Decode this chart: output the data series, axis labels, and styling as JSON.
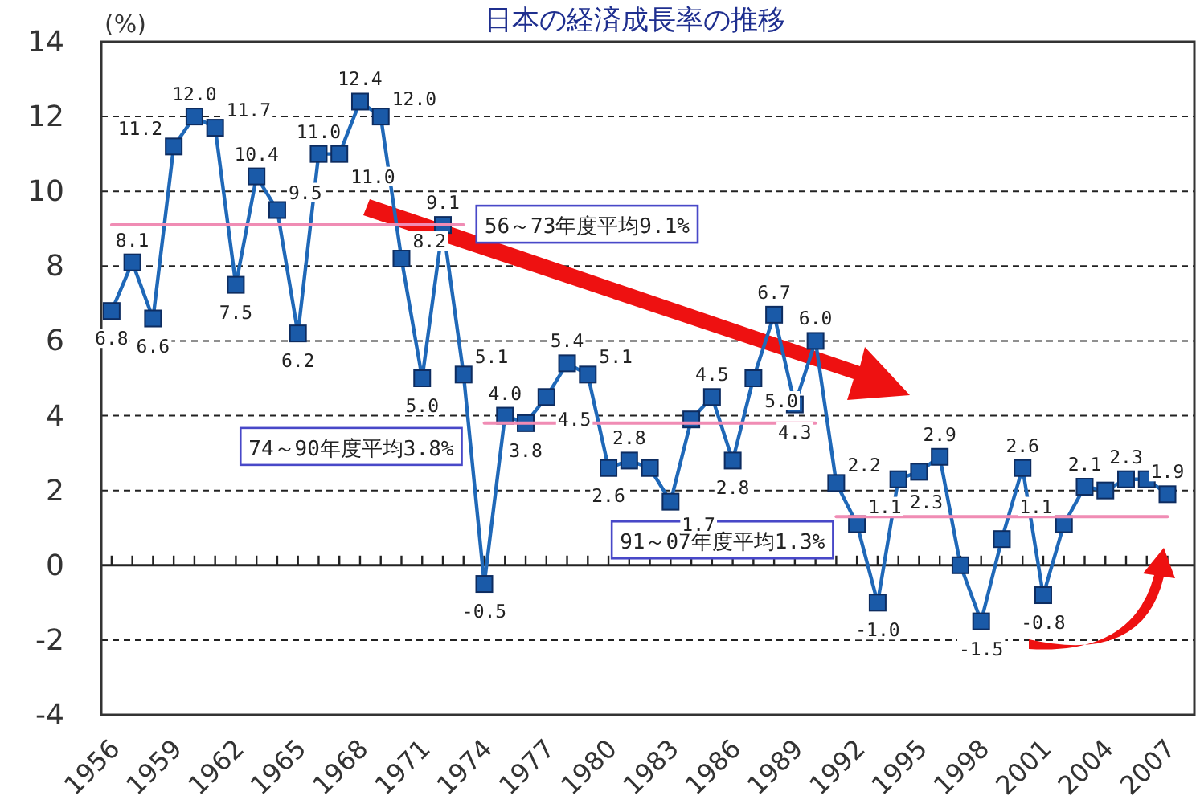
{
  "chart_data": {
    "type": "line",
    "title": "日本の経済成長率の推移",
    "ylabel": "(%)",
    "x": [
      1956,
      1957,
      1958,
      1959,
      1960,
      1961,
      1962,
      1963,
      1964,
      1965,
      1966,
      1967,
      1968,
      1969,
      1970,
      1971,
      1972,
      1973,
      1974,
      1975,
      1976,
      1977,
      1978,
      1979,
      1980,
      1981,
      1982,
      1983,
      1984,
      1985,
      1986,
      1987,
      1988,
      1989,
      1990,
      1991,
      1992,
      1993,
      1994,
      1995,
      1996,
      1997,
      1998,
      1999,
      2000,
      2001,
      2002,
      2003,
      2004,
      2005,
      2006,
      2007
    ],
    "series": [
      {
        "color": "#1f68b8",
        "marker": "square",
        "values": [
          6.8,
          8.1,
          6.6,
          11.2,
          12.0,
          11.7,
          7.5,
          10.4,
          9.5,
          6.2,
          11.0,
          11.0,
          12.4,
          12.0,
          8.2,
          5.0,
          9.1,
          5.1,
          -0.5,
          4.0,
          3.8,
          4.5,
          5.4,
          5.1,
          2.6,
          2.8,
          2.6,
          1.7,
          3.9,
          4.5,
          2.8,
          5.0,
          6.7,
          4.3,
          6.0,
          2.2,
          1.1,
          -1.0,
          2.3,
          2.5,
          2.9,
          0.0,
          -1.5,
          0.7,
          2.6,
          -0.8,
          1.1,
          2.1,
          2.0,
          2.3,
          2.3,
          1.9
        ],
        "value_labels": [
          "6.8",
          "8.1",
          "6.6",
          "11.2",
          "12.0",
          "11.7",
          "7.5",
          "10.4",
          "9.5",
          "6.2",
          "11.0",
          "11.0",
          "12.4",
          "12.0",
          "8.2",
          "5.0",
          "9.1",
          "5.1",
          "-0.5",
          "4.0",
          "3.8",
          "4.5",
          "5.4",
          "5.1",
          "2.6",
          "2.8",
          null,
          "1.7",
          null,
          "4.5",
          "2.8",
          "5.0",
          "6.7",
          "4.3",
          "6.0",
          "2.2",
          "1.1",
          "-1.0",
          "2.3",
          null,
          "2.9",
          null,
          "-1.5",
          null,
          "2.6",
          "-0.8",
          "1.1",
          "2.1",
          null,
          "2.3",
          null,
          "1.9"
        ]
      },
      {
        "name": "56～73年度平均9.1%",
        "color": "#f08cb4",
        "marker": "none",
        "x": [
          1956,
          1973
        ],
        "values": [
          9.1,
          9.1
        ]
      },
      {
        "name": "74～90年度平均3.8%",
        "color": "#f08cb4",
        "marker": "none",
        "x": [
          1974,
          1990
        ],
        "values": [
          3.8,
          3.8
        ]
      },
      {
        "name": "91～07年度平均1.3%",
        "color": "#f08cb4",
        "marker": "none",
        "x": [
          1991,
          2007
        ],
        "values": [
          1.3,
          1.3
        ]
      }
    ],
    "xlim": [
      1955.5,
      2008.3
    ],
    "xticks": [
      1956,
      {
        "value": 1957,
        "label": null
      },
      {
        "value": 1958,
        "label": null
      },
      1959,
      {
        "value": 1960,
        "label": null
      },
      {
        "value": 1961,
        "label": null
      },
      1962,
      {
        "value": 1963,
        "label": null
      },
      {
        "value": 1964,
        "label": null
      },
      1965,
      {
        "value": 1966,
        "label": null
      },
      {
        "value": 1967,
        "label": null
      },
      1968,
      {
        "value": 1969,
        "label": null
      },
      {
        "value": 1970,
        "label": null
      },
      1971,
      {
        "value": 1972,
        "label": null
      },
      {
        "value": 1973,
        "label": null
      },
      1974,
      {
        "value": 1975,
        "label": null
      },
      {
        "value": 1976,
        "label": null
      },
      1977,
      {
        "value": 1978,
        "label": null
      },
      {
        "value": 1979,
        "label": null
      },
      1980,
      {
        "value": 1981,
        "label": null
      },
      {
        "value": 1982,
        "label": null
      },
      1983,
      {
        "value": 1984,
        "label": null
      },
      {
        "value": 1985,
        "label": null
      },
      1986,
      {
        "value": 1987,
        "label": null
      },
      {
        "value": 1988,
        "label": null
      },
      1989,
      {
        "value": 1990,
        "label": null
      },
      {
        "value": 1991,
        "label": null
      },
      1992,
      {
        "value": 1993,
        "label": null
      },
      {
        "value": 1994,
        "label": null
      },
      1995,
      {
        "value": 1996,
        "label": null
      },
      {
        "value": 1997,
        "label": null
      },
      1998,
      {
        "value": 1999,
        "label": null
      },
      {
        "value": 2000,
        "label": null
      },
      2001,
      {
        "value": 2002,
        "label": null
      },
      {
        "value": 2003,
        "label": null
      },
      2004,
      {
        "value": 2005,
        "label": null
      },
      {
        "value": 2006,
        "label": null
      },
      2007
    ],
    "ylim": [
      -4,
      14
    ],
    "yticks": [
      -4,
      -2,
      0,
      2,
      4,
      6,
      8,
      10,
      12,
      14
    ],
    "grid": "y",
    "legend": false,
    "line_style": "solid"
  }
}
